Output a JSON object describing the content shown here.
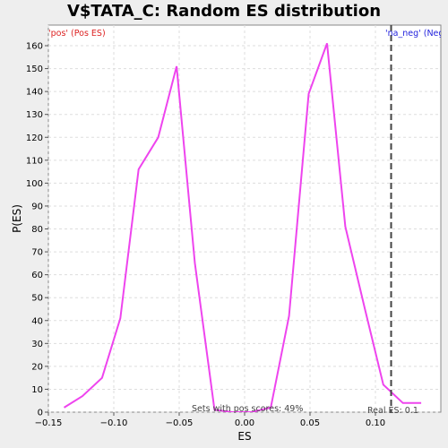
{
  "chart_data": {
    "type": "line",
    "title": "V$TATA_C: Random ES distribution",
    "xlabel": "ES",
    "ylabel": "P(ES)",
    "xlim": [
      -0.15,
      0.15
    ],
    "ylim": [
      0,
      169
    ],
    "x_ticks": [
      -0.15,
      -0.1,
      -0.05,
      0.0,
      0.05,
      0.1
    ],
    "x_tick_labels": [
      "−0.15",
      "−0.10",
      "−0.05",
      "0.00",
      "0.05",
      "0.10"
    ],
    "y_ticks": [
      0,
      10,
      20,
      30,
      40,
      50,
      60,
      70,
      80,
      90,
      100,
      110,
      120,
      130,
      140,
      150,
      160
    ],
    "grid": true,
    "series": [
      {
        "color": "#ee44ee",
        "x": [
          -0.138,
          -0.124,
          -0.109,
          -0.095,
          -0.081,
          -0.066,
          -0.052,
          -0.038,
          -0.023,
          -0.009,
          0.005,
          0.02,
          0.034,
          0.049,
          0.063,
          0.077,
          0.092,
          0.106,
          0.121,
          0.135
        ],
        "y": [
          2,
          7,
          15,
          41,
          106,
          120,
          151,
          65,
          1,
          0,
          0,
          2,
          42,
          139,
          161,
          81,
          45,
          12,
          4,
          4
        ]
      }
    ],
    "real_es": 0.112,
    "annotations": {
      "pos_label": "'pos' (Pos ES)",
      "pos_color": "#dd2222",
      "neg_label": "'na_neg' (Neg ES)",
      "neg_color": "#2222dd",
      "pos_scores": "Sets with pos scores: 49%",
      "real_es_label": "Real ES: 0.1"
    }
  }
}
